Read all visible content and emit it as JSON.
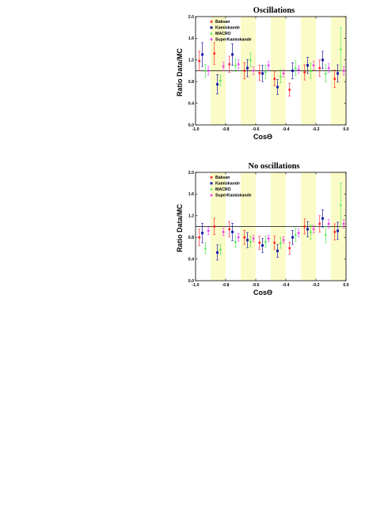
{
  "colors": {
    "band": "#fbfbc8",
    "frame": "#000000",
    "Baksan": "#ff2a2a",
    "Kamiokande": "#1a1aa8",
    "MACRO": "#55ee55",
    "SuperKamiokande": "#ee44ee"
  },
  "chart_data": [
    {
      "type": "scatter",
      "title": "Oscillations",
      "xlabel": "CosΘ",
      "ylabel": "Ratio Data/MC",
      "xlim": [
        -1.0,
        0.0
      ],
      "ylim": [
        0.0,
        2.0
      ],
      "xticks": [
        "-1.0",
        "-0.8",
        "-0.6",
        "-0.4",
        "-0.2",
        "0.0"
      ],
      "yticks": [
        "0.0",
        "0.4",
        "0.8",
        "1.2",
        "1.6",
        "2.0"
      ],
      "reference_line": 1.0,
      "shaded_bands": [
        [
          -0.9,
          -0.8
        ],
        [
          -0.7,
          -0.6
        ],
        [
          -0.5,
          -0.4
        ],
        [
          -0.3,
          -0.2
        ],
        [
          -0.1,
          0.0
        ]
      ],
      "legend_position": "top-left",
      "series": [
        {
          "name": "Baksan",
          "points": [
            {
              "x": -0.975,
              "y": 1.18,
              "err": 0.18
            },
            {
              "x": -0.875,
              "y": 1.32,
              "err": 0.2
            },
            {
              "x": -0.775,
              "y": 1.12,
              "err": 0.15
            },
            {
              "x": -0.675,
              "y": 1.0,
              "err": 0.15
            },
            {
              "x": -0.575,
              "y": 0.96,
              "err": 0.14
            },
            {
              "x": -0.475,
              "y": 0.85,
              "err": 0.13
            },
            {
              "x": -0.375,
              "y": 0.65,
              "err": 0.12
            },
            {
              "x": -0.275,
              "y": 0.97,
              "err": 0.14
            },
            {
              "x": -0.175,
              "y": 1.05,
              "err": 0.15
            },
            {
              "x": -0.075,
              "y": 0.85,
              "err": 0.16
            }
          ]
        },
        {
          "name": "Kamiokande",
          "points": [
            {
              "x": -0.955,
              "y": 1.3,
              "err": 0.22
            },
            {
              "x": -0.855,
              "y": 0.75,
              "err": 0.18
            },
            {
              "x": -0.755,
              "y": 1.3,
              "err": 0.2
            },
            {
              "x": -0.655,
              "y": 1.05,
              "err": 0.16
            },
            {
              "x": -0.555,
              "y": 0.95,
              "err": 0.15
            },
            {
              "x": -0.455,
              "y": 0.7,
              "err": 0.14
            },
            {
              "x": -0.355,
              "y": 1.0,
              "err": 0.15
            },
            {
              "x": -0.255,
              "y": 1.1,
              "err": 0.15
            },
            {
              "x": -0.155,
              "y": 1.2,
              "err": 0.16
            },
            {
              "x": -0.055,
              "y": 0.95,
              "err": 0.16
            }
          ]
        },
        {
          "name": "MACRO",
          "points": [
            {
              "x": -0.935,
              "y": 1.0,
              "err": 0.12
            },
            {
              "x": -0.835,
              "y": 0.82,
              "err": 0.1
            },
            {
              "x": -0.735,
              "y": 1.1,
              "err": 0.12
            },
            {
              "x": -0.635,
              "y": 1.2,
              "err": 0.13
            },
            {
              "x": -0.535,
              "y": 0.98,
              "err": 0.12
            },
            {
              "x": -0.435,
              "y": 0.9,
              "err": 0.12
            },
            {
              "x": -0.335,
              "y": 1.05,
              "err": 0.14
            },
            {
              "x": -0.235,
              "y": 1.0,
              "err": 0.14
            },
            {
              "x": -0.135,
              "y": 0.95,
              "err": 0.16
            },
            {
              "x": -0.035,
              "y": 1.4,
              "err": 0.4
            }
          ]
        },
        {
          "name": "SuperKamiokande",
          "points": [
            {
              "x": -0.915,
              "y": 1.0,
              "err": 0.08
            },
            {
              "x": -0.815,
              "y": 1.08,
              "err": 0.08
            },
            {
              "x": -0.715,
              "y": 1.12,
              "err": 0.08
            },
            {
              "x": -0.615,
              "y": 1.0,
              "err": 0.07
            },
            {
              "x": -0.515,
              "y": 1.1,
              "err": 0.07
            },
            {
              "x": -0.415,
              "y": 0.95,
              "err": 0.07
            },
            {
              "x": -0.315,
              "y": 1.02,
              "err": 0.07
            },
            {
              "x": -0.215,
              "y": 1.1,
              "err": 0.08
            },
            {
              "x": -0.115,
              "y": 1.05,
              "err": 0.08
            },
            {
              "x": -0.015,
              "y": 1.0,
              "err": 0.08
            }
          ]
        }
      ]
    },
    {
      "type": "scatter",
      "title": "No oscillations",
      "xlabel": "CosΘ",
      "ylabel": "Ratio Data/MC",
      "xlim": [
        -1.0,
        0.0
      ],
      "ylim": [
        0.0,
        2.0
      ],
      "xticks": [
        "-1.0",
        "-0.8",
        "-0.6",
        "-0.4",
        "-0.2",
        "0.0"
      ],
      "yticks": [
        "0.0",
        "0.4",
        "0.8",
        "1.2",
        "1.6",
        "2.0"
      ],
      "reference_line": 1.0,
      "shaded_bands": [
        [
          -0.9,
          -0.8
        ],
        [
          -0.7,
          -0.6
        ],
        [
          -0.5,
          -0.4
        ],
        [
          -0.3,
          -0.2
        ],
        [
          -0.1,
          0.0
        ]
      ],
      "legend_position": "top-left",
      "series": [
        {
          "name": "Baksan",
          "points": [
            {
              "x": -0.975,
              "y": 0.8,
              "err": 0.15
            },
            {
              "x": -0.875,
              "y": 1.0,
              "err": 0.15
            },
            {
              "x": -0.775,
              "y": 0.95,
              "err": 0.14
            },
            {
              "x": -0.675,
              "y": 0.8,
              "err": 0.13
            },
            {
              "x": -0.575,
              "y": 0.7,
              "err": 0.12
            },
            {
              "x": -0.475,
              "y": 0.7,
              "err": 0.12
            },
            {
              "x": -0.375,
              "y": 0.6,
              "err": 0.11
            },
            {
              "x": -0.275,
              "y": 1.0,
              "err": 0.14
            },
            {
              "x": -0.175,
              "y": 1.05,
              "err": 0.15
            },
            {
              "x": -0.075,
              "y": 0.9,
              "err": 0.15
            }
          ]
        },
        {
          "name": "Kamiokande",
          "points": [
            {
              "x": -0.955,
              "y": 0.88,
              "err": 0.18
            },
            {
              "x": -0.855,
              "y": 0.52,
              "err": 0.14
            },
            {
              "x": -0.755,
              "y": 0.9,
              "err": 0.16
            },
            {
              "x": -0.655,
              "y": 0.75,
              "err": 0.14
            },
            {
              "x": -0.555,
              "y": 0.65,
              "err": 0.13
            },
            {
              "x": -0.455,
              "y": 0.55,
              "err": 0.12
            },
            {
              "x": -0.355,
              "y": 0.8,
              "err": 0.13
            },
            {
              "x": -0.255,
              "y": 0.95,
              "err": 0.14
            },
            {
              "x": -0.155,
              "y": 1.15,
              "err": 0.16
            },
            {
              "x": -0.055,
              "y": 0.92,
              "err": 0.16
            }
          ]
        },
        {
          "name": "MACRO",
          "points": [
            {
              "x": -0.935,
              "y": 0.6,
              "err": 0.1
            },
            {
              "x": -0.835,
              "y": 0.58,
              "err": 0.09
            },
            {
              "x": -0.735,
              "y": 0.72,
              "err": 0.1
            },
            {
              "x": -0.635,
              "y": 0.72,
              "err": 0.1
            },
            {
              "x": -0.535,
              "y": 0.72,
              "err": 0.1
            },
            {
              "x": -0.435,
              "y": 0.7,
              "err": 0.1
            },
            {
              "x": -0.335,
              "y": 0.85,
              "err": 0.12
            },
            {
              "x": -0.235,
              "y": 0.9,
              "err": 0.13
            },
            {
              "x": -0.135,
              "y": 0.85,
              "err": 0.15
            },
            {
              "x": -0.035,
              "y": 1.4,
              "err": 0.4
            }
          ]
        },
        {
          "name": "SuperKamiokande",
          "points": [
            {
              "x": -0.915,
              "y": 0.92,
              "err": 0.07
            },
            {
              "x": -0.815,
              "y": 0.9,
              "err": 0.07
            },
            {
              "x": -0.715,
              "y": 0.8,
              "err": 0.07
            },
            {
              "x": -0.615,
              "y": 0.78,
              "err": 0.06
            },
            {
              "x": -0.515,
              "y": 0.78,
              "err": 0.06
            },
            {
              "x": -0.415,
              "y": 0.75,
              "err": 0.06
            },
            {
              "x": -0.315,
              "y": 0.88,
              "err": 0.07
            },
            {
              "x": -0.215,
              "y": 0.95,
              "err": 0.07
            },
            {
              "x": -0.115,
              "y": 1.05,
              "err": 0.08
            },
            {
              "x": -0.015,
              "y": 1.05,
              "err": 0.08
            }
          ]
        }
      ]
    }
  ]
}
